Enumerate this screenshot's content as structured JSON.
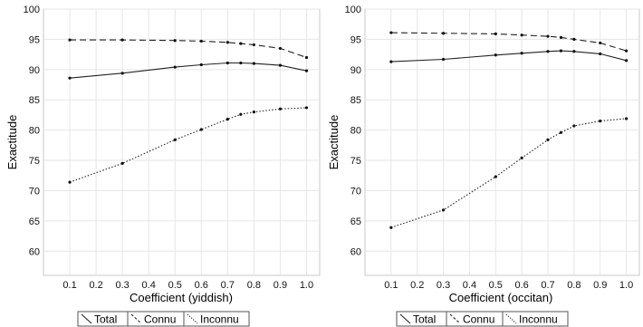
{
  "chart_data": [
    {
      "type": "line",
      "xlabel": "Coefficient (yiddish)",
      "ylabel": "Exactitude",
      "x": [
        0.1,
        0.3,
        0.5,
        0.6,
        0.7,
        0.75,
        0.8,
        0.9,
        1.0
      ],
      "xticks": [
        "0.1",
        "0.2",
        "0.3",
        "0.4",
        "0.5",
        "0.6",
        "0.7",
        "0.8",
        "0.9",
        "1.0"
      ],
      "yticks": [
        "60",
        "65",
        "70",
        "75",
        "80",
        "85",
        "90",
        "95",
        "100"
      ],
      "xlim": [
        0.0,
        1.05
      ],
      "ylim": [
        56,
        100
      ],
      "grid": true,
      "legend_position": "bottom",
      "series": [
        {
          "name": "Total",
          "style": "solid",
          "values": [
            88.6,
            89.4,
            90.4,
            90.8,
            91.1,
            91.1,
            91.0,
            90.7,
            89.8
          ]
        },
        {
          "name": "Connu",
          "style": "dashed",
          "values": [
            94.9,
            94.9,
            94.8,
            94.7,
            94.5,
            94.3,
            94.1,
            93.5,
            92.0
          ]
        },
        {
          "name": "Inconnu",
          "style": "dotted",
          "values": [
            71.4,
            74.5,
            78.4,
            80.1,
            81.8,
            82.6,
            83.0,
            83.5,
            83.7
          ]
        }
      ]
    },
    {
      "type": "line",
      "xlabel": "Coefficient (occitan)",
      "ylabel": "Exactitude",
      "x": [
        0.1,
        0.3,
        0.5,
        0.6,
        0.7,
        0.75,
        0.8,
        0.9,
        1.0
      ],
      "xticks": [
        "0.1",
        "0.2",
        "0.3",
        "0.4",
        "0.5",
        "0.6",
        "0.7",
        "0.8",
        "0.9",
        "1.0"
      ],
      "yticks": [
        "60",
        "65",
        "70",
        "75",
        "80",
        "85",
        "90",
        "95",
        "100"
      ],
      "xlim": [
        0.0,
        1.05
      ],
      "ylim": [
        56,
        100
      ],
      "grid": true,
      "legend_position": "bottom",
      "series": [
        {
          "name": "Total",
          "style": "solid",
          "values": [
            91.3,
            91.7,
            92.4,
            92.7,
            93.0,
            93.1,
            93.0,
            92.6,
            91.5
          ]
        },
        {
          "name": "Connu",
          "style": "dashed",
          "values": [
            96.1,
            96.0,
            95.9,
            95.7,
            95.5,
            95.3,
            95.0,
            94.4,
            93.1
          ]
        },
        {
          "name": "Inconnu",
          "style": "dotted",
          "values": [
            63.9,
            66.8,
            72.3,
            75.4,
            78.4,
            79.6,
            80.7,
            81.5,
            81.9
          ]
        }
      ]
    }
  ]
}
